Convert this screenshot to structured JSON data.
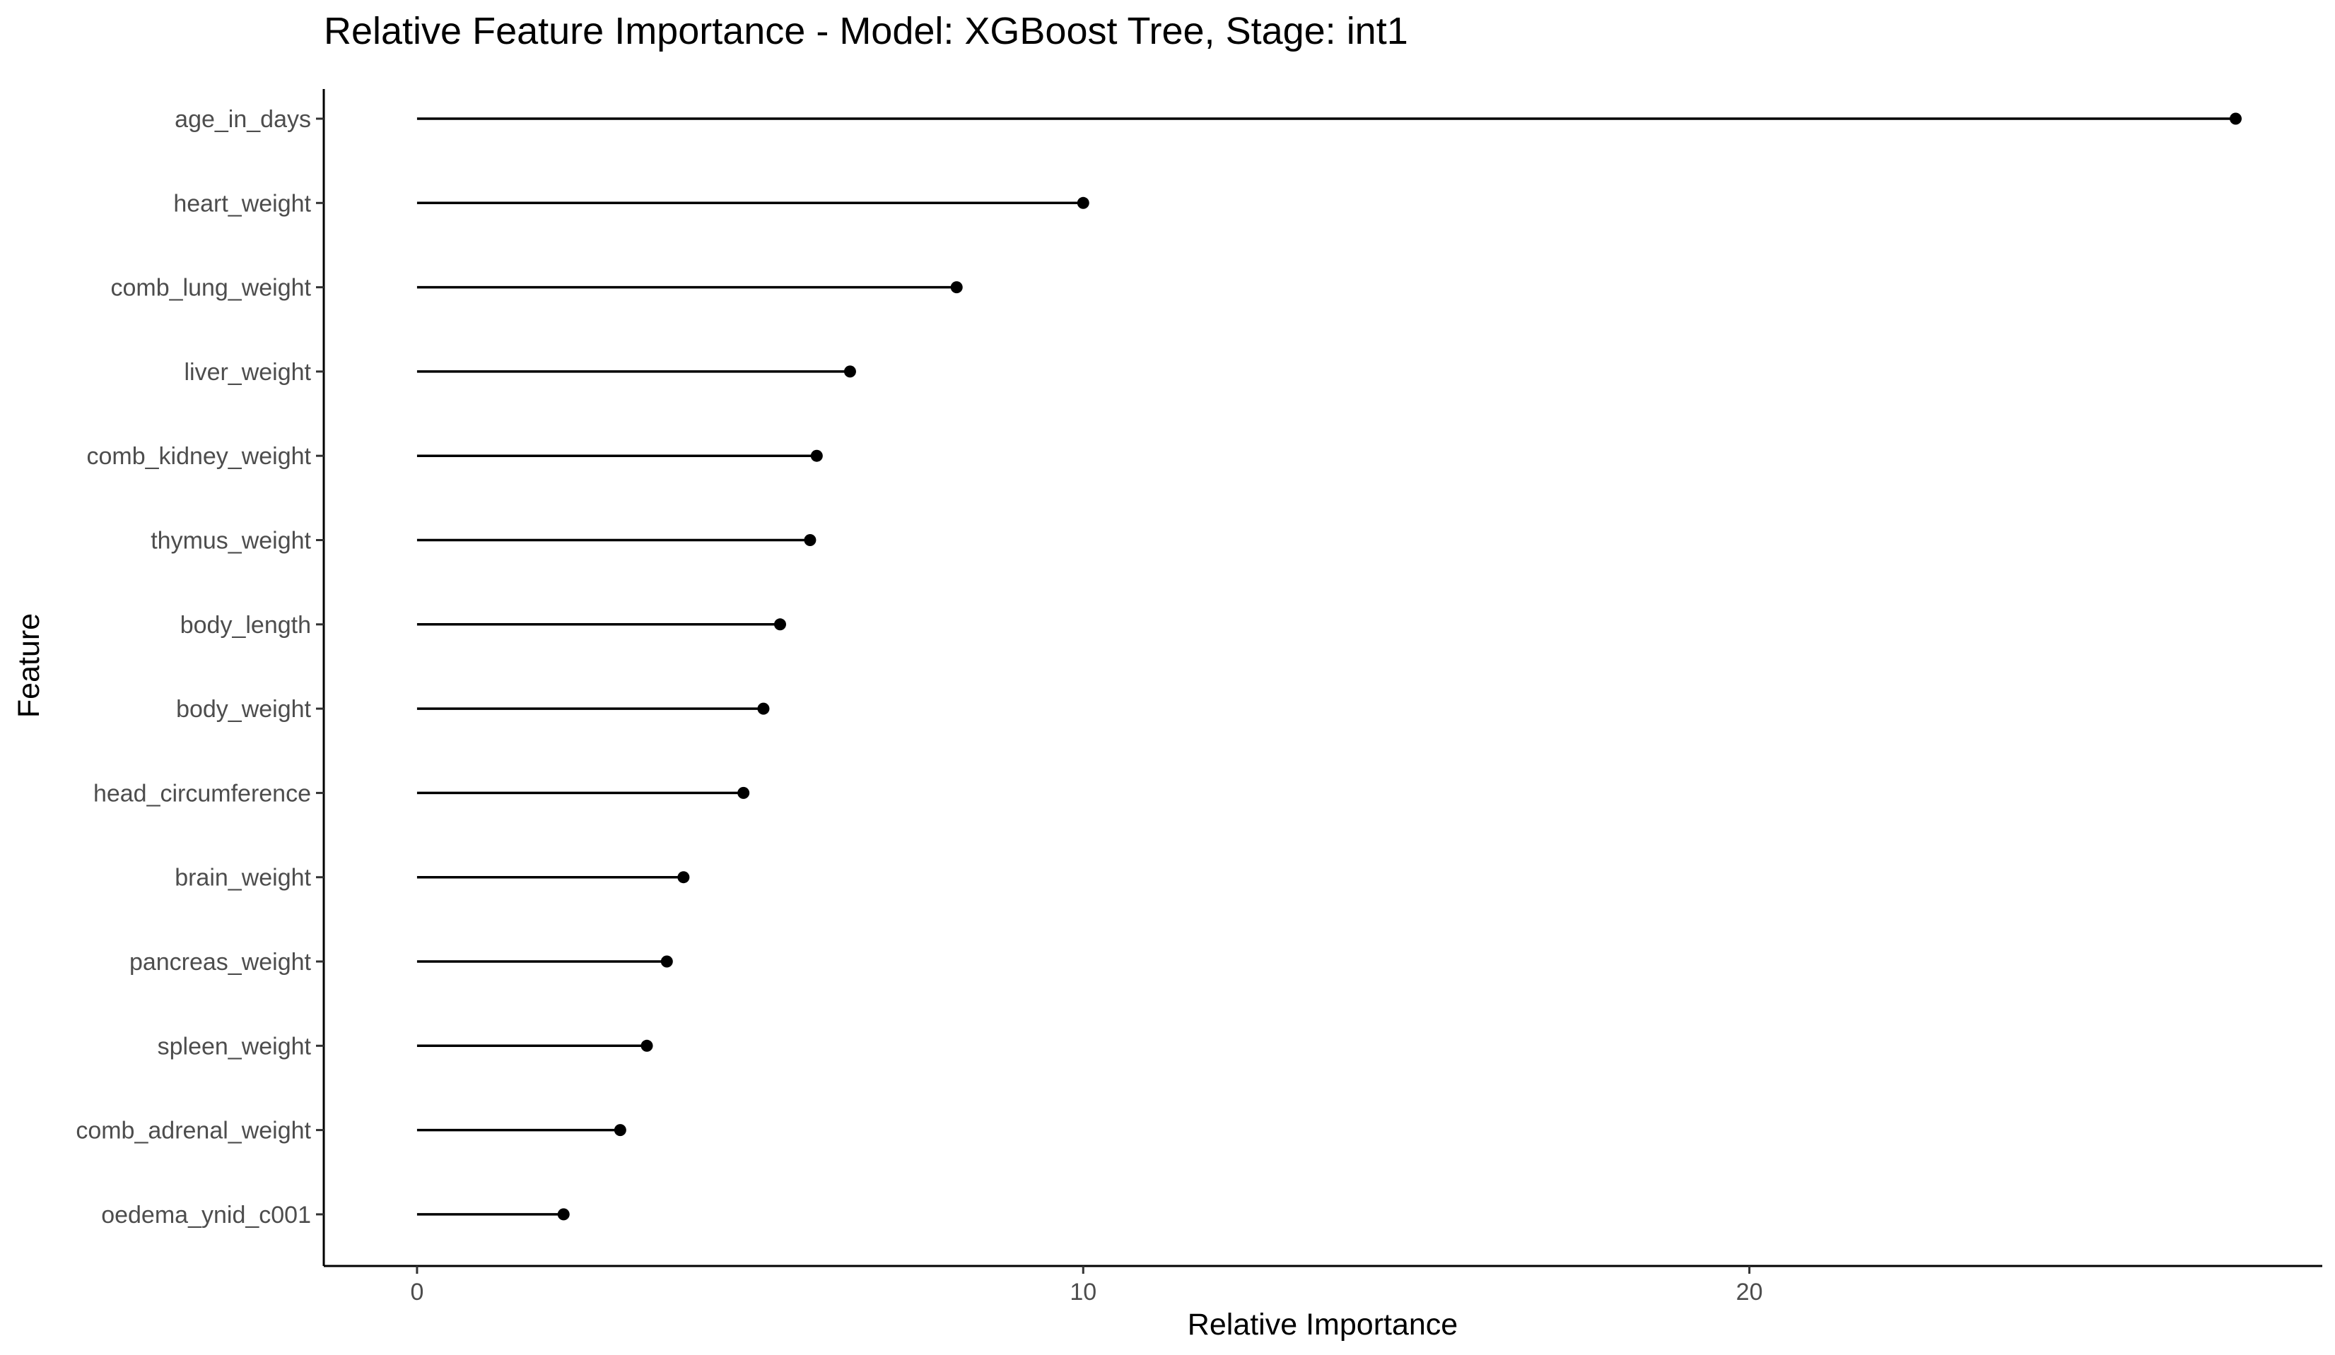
{
  "chart_data": {
    "type": "lollipop",
    "orientation": "horizontal",
    "title": "Relative Feature Importance - Model: XGBoost Tree, Stage: int1",
    "xlabel": "Relative Importance",
    "ylabel": "Feature",
    "xlim": [
      -1.4,
      28.6
    ],
    "xticks": [
      0,
      10,
      20
    ],
    "grid": false,
    "legend": "none",
    "colors": {
      "mark": "#000000",
      "tick_label": "#4d4d4d",
      "background": "#ffffff"
    },
    "categories": [
      "age_in_days",
      "heart_weight",
      "comb_lung_weight",
      "liver_weight",
      "comb_kidney_weight",
      "thymus_weight",
      "body_length",
      "body_weight",
      "head_circumference",
      "brain_weight",
      "pancreas_weight",
      "spleen_weight",
      "comb_adrenal_weight",
      "oedema_ynid_c001"
    ],
    "values": [
      27.3,
      10.0,
      8.1,
      6.5,
      6.0,
      5.9,
      5.45,
      5.2,
      4.9,
      4.0,
      3.75,
      3.45,
      3.05,
      2.2
    ]
  }
}
